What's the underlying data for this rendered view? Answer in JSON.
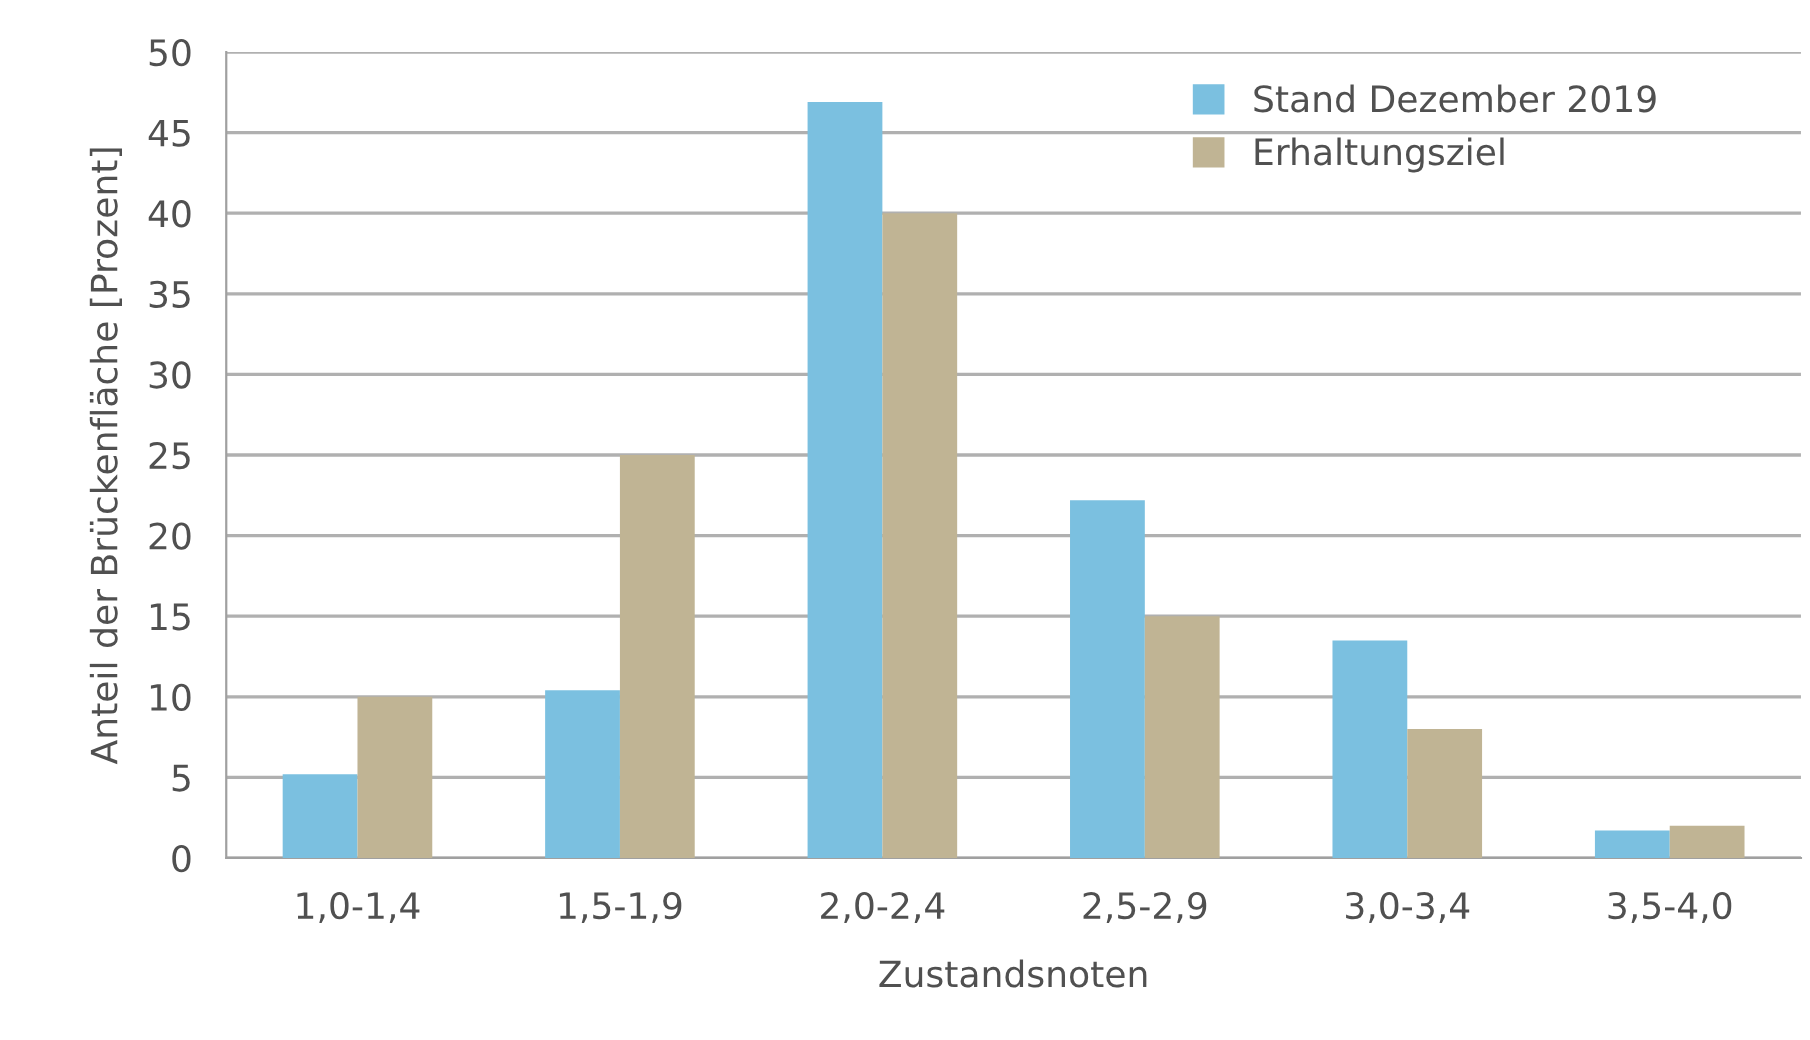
{
  "chart_data": {
    "type": "bar",
    "xlabel": "Zustandsnoten",
    "ylabel": "Anteil der Brückenfläche [Prozent]",
    "categories": [
      "1,0-1,4",
      "1,5-1,9",
      "2,0-2,4",
      "2,5-2,9",
      "3,0-3,4",
      "3,5-4,0"
    ],
    "series": [
      {
        "name": "Stand Dezember 2019",
        "color": "#7bc0e0",
        "values": [
          5.2,
          10.4,
          46.9,
          22.2,
          13.5,
          1.7
        ]
      },
      {
        "name": "Erhaltungsziel",
        "color": "#c0b494",
        "values": [
          10,
          25,
          40,
          15,
          8,
          2
        ]
      }
    ],
    "ylim": [
      0,
      50
    ],
    "yticks": [
      0,
      5,
      10,
      15,
      20,
      25,
      30,
      35,
      40,
      45,
      50
    ],
    "grid": "y",
    "legend": "top right"
  }
}
